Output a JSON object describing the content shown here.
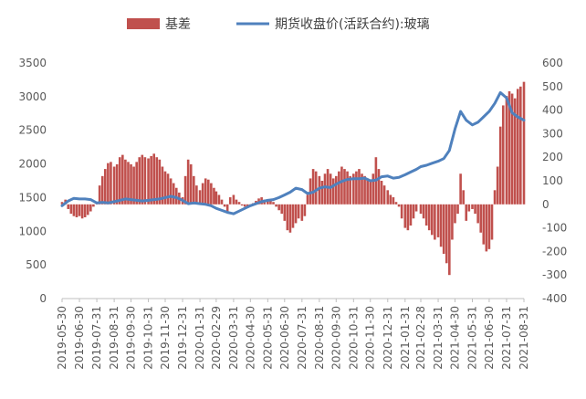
{
  "chart_data": {
    "type": "bar+line",
    "legend": [
      {
        "name": "基差",
        "kind": "bar",
        "color": "#C0504D"
      },
      {
        "name": "期货收盘价(活跃合约):玻璃",
        "kind": "line",
        "color": "#4F81BD"
      }
    ],
    "legend_position": "top",
    "grid": false,
    "left_axis": {
      "min": 0,
      "max": 3500,
      "ticks": [
        "0",
        "500",
        "1000",
        "1500",
        "2000",
        "2500",
        "3000",
        "3500"
      ],
      "series": "期货收盘价(活跃合约):玻璃"
    },
    "right_axis": {
      "min": -400,
      "max": 600,
      "ticks": [
        "-400",
        "-300",
        "-200",
        "-100",
        "0",
        "100",
        "200",
        "300",
        "400",
        "500",
        "600"
      ],
      "series": "基差"
    },
    "x_axis": {
      "start": "2019-05-30",
      "end": "2021-08-31",
      "ticks": [
        "2019-05-30",
        "2019-06-30",
        "2019-07-31",
        "2019-08-31",
        "2019-09-30",
        "2019-10-31",
        "2019-11-30",
        "2019-12-31",
        "2020-01-31",
        "2020-02-29",
        "2020-03-31",
        "2020-04-30",
        "2020-05-31",
        "2020-06-30",
        "2020-07-31",
        "2020-08-31",
        "2020-09-30",
        "2020-10-31",
        "2020-11-30",
        "2020-12-31",
        "2021-01-31",
        "2021-02-28",
        "2021-03-31",
        "2021-04-30",
        "2021-05-31",
        "2021-06-30",
        "2021-07-31",
        "2021-08-31"
      ]
    },
    "series": [
      {
        "name": "基差",
        "axis": "right",
        "type": "bar",
        "points": [
          [
            "2019-05-30",
            10
          ],
          [
            "2019-06-05",
            20
          ],
          [
            "2019-06-10",
            -20
          ],
          [
            "2019-06-15",
            -40
          ],
          [
            "2019-06-20",
            -50
          ],
          [
            "2019-06-25",
            -55
          ],
          [
            "2019-06-30",
            -50
          ],
          [
            "2019-07-05",
            -60
          ],
          [
            "2019-07-10",
            -55
          ],
          [
            "2019-07-15",
            -45
          ],
          [
            "2019-07-20",
            -30
          ],
          [
            "2019-07-25",
            -10
          ],
          [
            "2019-07-31",
            10
          ],
          [
            "2019-08-05",
            80
          ],
          [
            "2019-08-10",
            120
          ],
          [
            "2019-08-15",
            150
          ],
          [
            "2019-08-20",
            175
          ],
          [
            "2019-08-25",
            180
          ],
          [
            "2019-08-31",
            160
          ],
          [
            "2019-09-05",
            170
          ],
          [
            "2019-09-10",
            200
          ],
          [
            "2019-09-15",
            210
          ],
          [
            "2019-09-20",
            190
          ],
          [
            "2019-09-25",
            180
          ],
          [
            "2019-09-30",
            170
          ],
          [
            "2019-10-05",
            160
          ],
          [
            "2019-10-10",
            180
          ],
          [
            "2019-10-15",
            200
          ],
          [
            "2019-10-20",
            210
          ],
          [
            "2019-10-25",
            200
          ],
          [
            "2019-10-31",
            195
          ],
          [
            "2019-11-05",
            205
          ],
          [
            "2019-11-10",
            215
          ],
          [
            "2019-11-15",
            200
          ],
          [
            "2019-11-20",
            190
          ],
          [
            "2019-11-25",
            160
          ],
          [
            "2019-11-30",
            140
          ],
          [
            "2019-12-05",
            130
          ],
          [
            "2019-12-10",
            110
          ],
          [
            "2019-12-15",
            90
          ],
          [
            "2019-12-20",
            70
          ],
          [
            "2019-12-25",
            50
          ],
          [
            "2019-12-31",
            30
          ],
          [
            "2020-01-05",
            120
          ],
          [
            "2020-01-10",
            190
          ],
          [
            "2020-01-15",
            170
          ],
          [
            "2020-01-20",
            120
          ],
          [
            "2020-01-25",
            80
          ],
          [
            "2020-01-31",
            60
          ],
          [
            "2020-02-05",
            90
          ],
          [
            "2020-02-10",
            110
          ],
          [
            "2020-02-15",
            105
          ],
          [
            "2020-02-20",
            90
          ],
          [
            "2020-02-25",
            70
          ],
          [
            "2020-02-29",
            55
          ],
          [
            "2020-03-05",
            40
          ],
          [
            "2020-03-10",
            20
          ],
          [
            "2020-03-15",
            -10
          ],
          [
            "2020-03-20",
            -30
          ],
          [
            "2020-03-25",
            30
          ],
          [
            "2020-03-31",
            40
          ],
          [
            "2020-04-05",
            20
          ],
          [
            "2020-04-10",
            10
          ],
          [
            "2020-04-15",
            -5
          ],
          [
            "2020-04-20",
            -10
          ],
          [
            "2020-04-25",
            -15
          ],
          [
            "2020-04-30",
            -10
          ],
          [
            "2020-05-05",
            5
          ],
          [
            "2020-05-10",
            15
          ],
          [
            "2020-05-15",
            25
          ],
          [
            "2020-05-20",
            30
          ],
          [
            "2020-05-25",
            20
          ],
          [
            "2020-05-31",
            15
          ],
          [
            "2020-06-05",
            20
          ],
          [
            "2020-06-10",
            10
          ],
          [
            "2020-06-15",
            -10
          ],
          [
            "2020-06-20",
            -25
          ],
          [
            "2020-06-25",
            -40
          ],
          [
            "2020-06-30",
            -70
          ],
          [
            "2020-07-05",
            -110
          ],
          [
            "2020-07-10",
            -120
          ],
          [
            "2020-07-15",
            -100
          ],
          [
            "2020-07-20",
            -80
          ],
          [
            "2020-07-25",
            -60
          ],
          [
            "2020-07-31",
            -70
          ],
          [
            "2020-08-05",
            -50
          ],
          [
            "2020-08-10",
            40
          ],
          [
            "2020-08-15",
            110
          ],
          [
            "2020-08-20",
            150
          ],
          [
            "2020-08-25",
            140
          ],
          [
            "2020-08-31",
            120
          ],
          [
            "2020-09-05",
            100
          ],
          [
            "2020-09-10",
            130
          ],
          [
            "2020-09-15",
            150
          ],
          [
            "2020-09-20",
            130
          ],
          [
            "2020-09-25",
            110
          ],
          [
            "2020-09-30",
            120
          ],
          [
            "2020-10-05",
            140
          ],
          [
            "2020-10-10",
            160
          ],
          [
            "2020-10-15",
            150
          ],
          [
            "2020-10-20",
            140
          ],
          [
            "2020-10-25",
            120
          ],
          [
            "2020-10-31",
            130
          ],
          [
            "2020-11-05",
            140
          ],
          [
            "2020-11-10",
            150
          ],
          [
            "2020-11-15",
            130
          ],
          [
            "2020-11-20",
            120
          ],
          [
            "2020-11-25",
            110
          ],
          [
            "2020-11-30",
            105
          ],
          [
            "2020-12-05",
            130
          ],
          [
            "2020-12-10",
            200
          ],
          [
            "2020-12-15",
            150
          ],
          [
            "2020-12-20",
            100
          ],
          [
            "2020-12-25",
            80
          ],
          [
            "2020-12-31",
            60
          ],
          [
            "2021-01-05",
            40
          ],
          [
            "2021-01-10",
            30
          ],
          [
            "2021-01-15",
            10
          ],
          [
            "2021-01-20",
            -10
          ],
          [
            "2021-01-25",
            -60
          ],
          [
            "2021-01-31",
            -100
          ],
          [
            "2021-02-05",
            -110
          ],
          [
            "2021-02-10",
            -90
          ],
          [
            "2021-02-15",
            -60
          ],
          [
            "2021-02-20",
            -30
          ],
          [
            "2021-02-28",
            -40
          ],
          [
            "2021-03-05",
            -60
          ],
          [
            "2021-03-10",
            -90
          ],
          [
            "2021-03-15",
            -110
          ],
          [
            "2021-03-20",
            -130
          ],
          [
            "2021-03-25",
            -150
          ],
          [
            "2021-03-31",
            -140
          ],
          [
            "2021-04-05",
            -180
          ],
          [
            "2021-04-10",
            -210
          ],
          [
            "2021-04-15",
            -250
          ],
          [
            "2021-04-20",
            -300
          ],
          [
            "2021-04-25",
            -150
          ],
          [
            "2021-04-30",
            -80
          ],
          [
            "2021-05-05",
            -40
          ],
          [
            "2021-05-10",
            130
          ],
          [
            "2021-05-15",
            60
          ],
          [
            "2021-05-20",
            -70
          ],
          [
            "2021-05-25",
            -30
          ],
          [
            "2021-05-31",
            -20
          ],
          [
            "2021-06-05",
            -40
          ],
          [
            "2021-06-10",
            -80
          ],
          [
            "2021-06-15",
            -120
          ],
          [
            "2021-06-20",
            -170
          ],
          [
            "2021-06-25",
            -200
          ],
          [
            "2021-06-30",
            -190
          ],
          [
            "2021-07-05",
            -150
          ],
          [
            "2021-07-10",
            60
          ],
          [
            "2021-07-15",
            160
          ],
          [
            "2021-07-20",
            330
          ],
          [
            "2021-07-25",
            420
          ],
          [
            "2021-07-31",
            460
          ],
          [
            "2021-08-05",
            480
          ],
          [
            "2021-08-10",
            470
          ],
          [
            "2021-08-15",
            450
          ],
          [
            "2021-08-20",
            490
          ],
          [
            "2021-08-25",
            500
          ],
          [
            "2021-08-31",
            520
          ]
        ]
      },
      {
        "name": "期货收盘价(活跃合约):玻璃",
        "axis": "left",
        "type": "line",
        "points": [
          [
            "2019-05-30",
            1380
          ],
          [
            "2019-06-10",
            1450
          ],
          [
            "2019-06-20",
            1490
          ],
          [
            "2019-06-30",
            1480
          ],
          [
            "2019-07-10",
            1480
          ],
          [
            "2019-07-20",
            1470
          ],
          [
            "2019-07-31",
            1420
          ],
          [
            "2019-08-10",
            1430
          ],
          [
            "2019-08-20",
            1420
          ],
          [
            "2019-08-31",
            1440
          ],
          [
            "2019-09-10",
            1460
          ],
          [
            "2019-09-20",
            1480
          ],
          [
            "2019-09-30",
            1470
          ],
          [
            "2019-10-10",
            1460
          ],
          [
            "2019-10-20",
            1450
          ],
          [
            "2019-10-31",
            1460
          ],
          [
            "2019-11-10",
            1470
          ],
          [
            "2019-11-20",
            1480
          ],
          [
            "2019-11-30",
            1500
          ],
          [
            "2019-12-10",
            1520
          ],
          [
            "2019-12-20",
            1500
          ],
          [
            "2019-12-31",
            1460
          ],
          [
            "2020-01-10",
            1410
          ],
          [
            "2020-01-20",
            1420
          ],
          [
            "2020-01-31",
            1410
          ],
          [
            "2020-02-10",
            1400
          ],
          [
            "2020-02-20",
            1380
          ],
          [
            "2020-02-29",
            1340
          ],
          [
            "2020-03-10",
            1310
          ],
          [
            "2020-03-20",
            1280
          ],
          [
            "2020-03-31",
            1260
          ],
          [
            "2020-04-10",
            1300
          ],
          [
            "2020-04-20",
            1340
          ],
          [
            "2020-04-30",
            1380
          ],
          [
            "2020-05-10",
            1410
          ],
          [
            "2020-05-20",
            1440
          ],
          [
            "2020-05-31",
            1460
          ],
          [
            "2020-06-10",
            1470
          ],
          [
            "2020-06-20",
            1500
          ],
          [
            "2020-06-30",
            1540
          ],
          [
            "2020-07-10",
            1580
          ],
          [
            "2020-07-20",
            1640
          ],
          [
            "2020-07-31",
            1620
          ],
          [
            "2020-08-10",
            1560
          ],
          [
            "2020-08-20",
            1580
          ],
          [
            "2020-08-31",
            1640
          ],
          [
            "2020-09-10",
            1660
          ],
          [
            "2020-09-20",
            1650
          ],
          [
            "2020-09-30",
            1700
          ],
          [
            "2020-10-10",
            1740
          ],
          [
            "2020-10-20",
            1770
          ],
          [
            "2020-10-31",
            1780
          ],
          [
            "2020-11-10",
            1780
          ],
          [
            "2020-11-20",
            1790
          ],
          [
            "2020-11-30",
            1750
          ],
          [
            "2020-12-10",
            1760
          ],
          [
            "2020-12-20",
            1810
          ],
          [
            "2020-12-31",
            1820
          ],
          [
            "2021-01-10",
            1790
          ],
          [
            "2021-01-20",
            1800
          ],
          [
            "2021-01-31",
            1840
          ],
          [
            "2021-02-10",
            1880
          ],
          [
            "2021-02-20",
            1920
          ],
          [
            "2021-02-28",
            1960
          ],
          [
            "2021-03-10",
            1980
          ],
          [
            "2021-03-20",
            2010
          ],
          [
            "2021-03-31",
            2040
          ],
          [
            "2021-04-10",
            2080
          ],
          [
            "2021-04-20",
            2200
          ],
          [
            "2021-04-30",
            2520
          ],
          [
            "2021-05-10",
            2780
          ],
          [
            "2021-05-20",
            2650
          ],
          [
            "2021-05-31",
            2580
          ],
          [
            "2021-06-10",
            2620
          ],
          [
            "2021-06-20",
            2700
          ],
          [
            "2021-06-30",
            2780
          ],
          [
            "2021-07-10",
            2900
          ],
          [
            "2021-07-20",
            3060
          ],
          [
            "2021-07-31",
            2980
          ],
          [
            "2021-08-10",
            2760
          ],
          [
            "2021-08-20",
            2700
          ],
          [
            "2021-08-31",
            2650
          ]
        ]
      }
    ]
  }
}
